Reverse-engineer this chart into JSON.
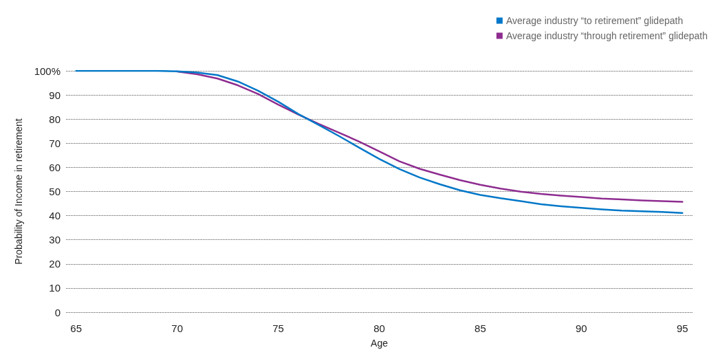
{
  "chart_data": {
    "type": "line",
    "xlabel": "Age",
    "ylabel": "Probability of Income in retirement",
    "x": [
      65,
      66,
      67,
      68,
      69,
      70,
      71,
      72,
      73,
      74,
      75,
      76,
      77,
      78,
      79,
      80,
      81,
      82,
      83,
      84,
      85,
      86,
      87,
      88,
      89,
      90,
      91,
      92,
      93,
      94,
      95
    ],
    "series": [
      {
        "name": "Average industry “to retirement” glidepath",
        "color": "#0077c8",
        "values": [
          100,
          100,
          100,
          100,
          100,
          99.8,
          99.3,
          98.2,
          95.6,
          91.8,
          87.2,
          82.1,
          77.6,
          73,
          68.2,
          63.5,
          59.3,
          55.8,
          53,
          50.5,
          48.6,
          47.2,
          46,
          44.7,
          43.9,
          43.2,
          42.6,
          42.1,
          41.8,
          41.5,
          41.1
        ]
      },
      {
        "name": "Average industry “through retirement” glidepath",
        "color": "#8e2c90",
        "values": [
          null,
          null,
          null,
          null,
          null,
          99.7,
          98.6,
          96.8,
          94,
          90.4,
          86,
          81.9,
          78,
          74.4,
          70.7,
          66.6,
          62.5,
          59.4,
          57,
          54.7,
          52.8,
          51.2,
          49.9,
          49,
          48.3,
          47.7,
          47.1,
          46.7,
          46.3,
          46,
          45.7
        ]
      }
    ],
    "xlim": [
      64.5,
      95.5
    ],
    "xticks": [
      65,
      70,
      75,
      80,
      85,
      90,
      95
    ],
    "ylim": [
      0,
      100
    ],
    "yticks": [
      0,
      10,
      20,
      30,
      40,
      50,
      60,
      70,
      80,
      90,
      {
        "value": 100,
        "label": "100%"
      }
    ],
    "grid": "y",
    "legend": "top right",
    "marker": "none",
    "line_style": "solid"
  }
}
